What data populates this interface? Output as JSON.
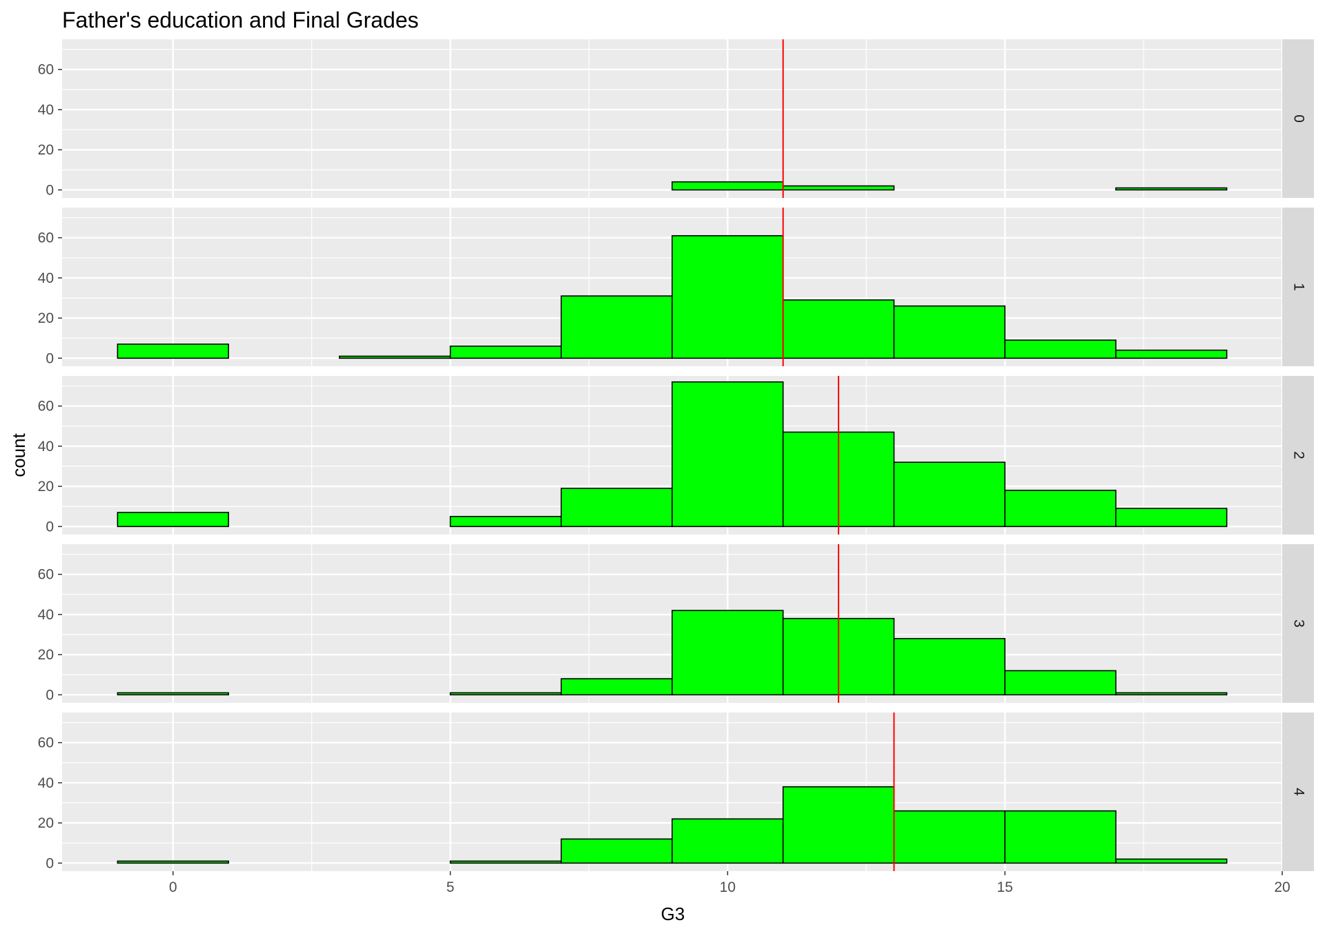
{
  "chart_data": {
    "type": "bar",
    "subtype": "faceted-histogram",
    "title": "Father's education and Final Grades",
    "xlabel": "G3",
    "ylabel": "count",
    "xlim": [
      -2,
      20
    ],
    "ylim": [
      -4,
      75
    ],
    "x_ticks": [
      0,
      5,
      10,
      15,
      20
    ],
    "y_ticks": [
      0,
      20,
      40,
      60
    ],
    "bin_edges": [
      -1,
      1,
      3,
      5,
      7,
      9,
      11,
      13,
      15,
      17,
      19
    ],
    "facet_variable_levels": [
      "0",
      "1",
      "2",
      "3",
      "4"
    ],
    "bar_fill_color": "#00ff00",
    "bar_outline_color": "#000000",
    "mean_line_color": "#ff0000",
    "panel_background": "#ebebeb",
    "strip_background": "#d9d9d9",
    "grid": true,
    "facets": [
      {
        "label": "0",
        "counts": [
          0,
          0,
          0,
          0,
          0,
          4,
          2,
          0,
          0,
          1
        ],
        "mean_line": 11
      },
      {
        "label": "1",
        "counts": [
          7,
          0,
          1,
          6,
          31,
          61,
          29,
          26,
          9,
          4
        ],
        "mean_line": 11
      },
      {
        "label": "2",
        "counts": [
          7,
          0,
          0,
          5,
          19,
          72,
          47,
          32,
          18,
          9
        ],
        "mean_line": 12
      },
      {
        "label": "3",
        "counts": [
          1,
          0,
          0,
          1,
          8,
          42,
          38,
          28,
          12,
          1
        ],
        "mean_line": 12
      },
      {
        "label": "4",
        "counts": [
          1,
          0,
          0,
          1,
          12,
          22,
          38,
          26,
          26,
          2
        ],
        "mean_line": 13
      }
    ]
  }
}
